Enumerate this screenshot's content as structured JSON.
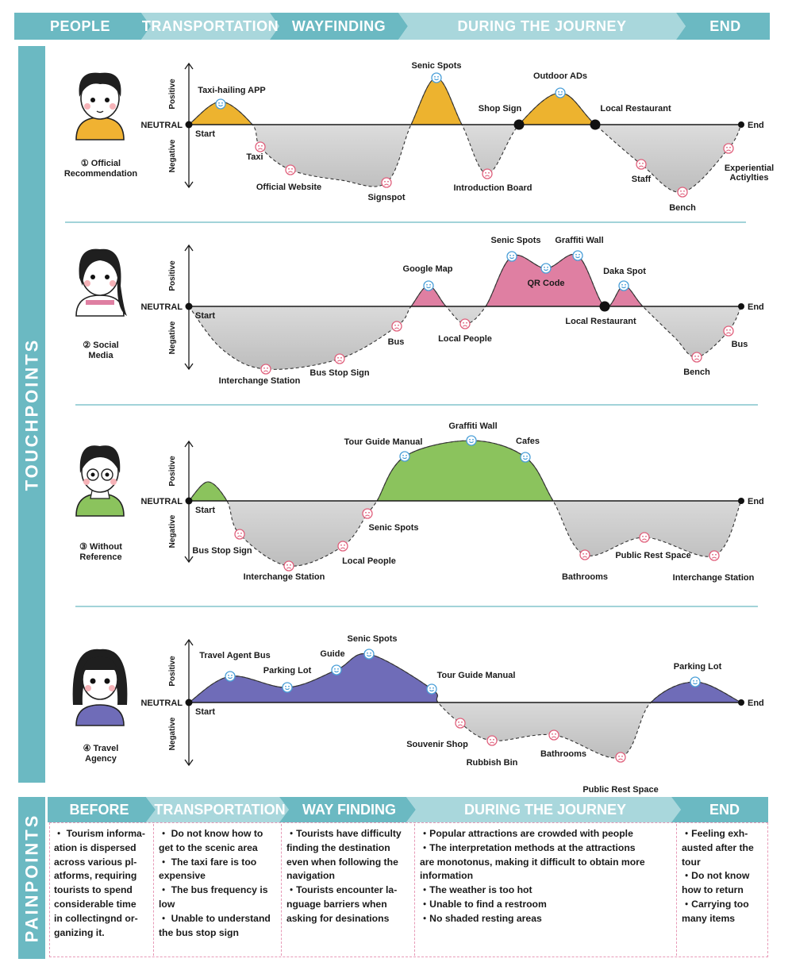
{
  "stages": [
    "PEOPLE",
    "TRANSPORTATION",
    "WAYFINDING",
    "DURING THE JOURNEY",
    "END"
  ],
  "touchpoints_label": "TOUCHPOINTS",
  "painpoints_label": "PAINPOINTS",
  "axis": {
    "positive": "Positive",
    "negative": "Negative",
    "neutral": "NEUTRAL",
    "start": "Start",
    "end": "End"
  },
  "colors": {
    "teal": "#6bb9c2",
    "light_teal": "#a9d7dc",
    "yellow": "#edb32f",
    "pink": "#df7fa2",
    "green": "#8bc35d",
    "purple": "#6f6cb8",
    "gray": "#c9c9c9"
  },
  "journeys": [
    {
      "persona": "① Official Recommendation",
      "persona_lines": [
        "① Official",
        "Recommendation"
      ],
      "color": "#edb32f",
      "touchpoints": [
        {
          "label": "Taxi-hailing APP",
          "mood": "positive"
        },
        {
          "label": "Taxi",
          "mood": "negative"
        },
        {
          "label": "Official Website",
          "mood": "negative"
        },
        {
          "label": "Signspot",
          "mood": "negative"
        },
        {
          "label": "Senic Spots",
          "mood": "positive"
        },
        {
          "label": "Introduction Board",
          "mood": "negative"
        },
        {
          "label": "Shop Sign",
          "mood": "neutral"
        },
        {
          "label": "Outdoor ADs",
          "mood": "positive"
        },
        {
          "label": "Local Restaurant",
          "mood": "neutral"
        },
        {
          "label": "Staff",
          "mood": "negative"
        },
        {
          "label": "Bench",
          "mood": "negative"
        },
        {
          "label": "Experiential Actiylties",
          "mood": "negative"
        }
      ]
    },
    {
      "persona": "② Social Media",
      "persona_lines": [
        "② Social",
        "Media"
      ],
      "color": "#df7fa2",
      "touchpoints": [
        {
          "label": "Interchange Station",
          "mood": "negative"
        },
        {
          "label": "Bus Stop Sign",
          "mood": "negative"
        },
        {
          "label": "Bus",
          "mood": "negative"
        },
        {
          "label": "Google Map",
          "mood": "positive"
        },
        {
          "label": "Local People",
          "mood": "negative"
        },
        {
          "label": "Senic Spots",
          "mood": "positive"
        },
        {
          "label": "QR Code",
          "mood": "positive"
        },
        {
          "label": "Graffiti Wall",
          "mood": "positive"
        },
        {
          "label": "Local Restaurant",
          "mood": "neutral"
        },
        {
          "label": "Daka Spot",
          "mood": "positive"
        },
        {
          "label": "Bench",
          "mood": "negative"
        },
        {
          "label": "Bus",
          "mood": "negative"
        }
      ]
    },
    {
      "persona": "③ Without Reference",
      "persona_lines": [
        "③ Without",
        "Reference"
      ],
      "color": "#8bc35d",
      "touchpoints": [
        {
          "label": "Bus Stop Sign",
          "mood": "negative"
        },
        {
          "label": "Interchange Station",
          "mood": "negative"
        },
        {
          "label": "Local People",
          "mood": "negative"
        },
        {
          "label": "Senic Spots",
          "mood": "negative"
        },
        {
          "label": "Tour Guide Manual",
          "mood": "positive"
        },
        {
          "label": "Graffiti Wall",
          "mood": "positive"
        },
        {
          "label": "Cafes",
          "mood": "positive"
        },
        {
          "label": "Bathrooms",
          "mood": "negative"
        },
        {
          "label": "Public Rest Space",
          "mood": "negative"
        },
        {
          "label": "Interchange Station",
          "mood": "negative"
        }
      ]
    },
    {
      "persona": "④ Travel Agency",
      "persona_lines": [
        "④ Travel",
        "Agency"
      ],
      "color": "#6f6cb8",
      "touchpoints": [
        {
          "label": "Travel Agent Bus",
          "mood": "positive"
        },
        {
          "label": "Parking Lot",
          "mood": "positive"
        },
        {
          "label": "Guide",
          "mood": "positive"
        },
        {
          "label": "Senic Spots",
          "mood": "positive"
        },
        {
          "label": "Tour Guide Manual",
          "mood": "positive"
        },
        {
          "label": "Souvenir Shop",
          "mood": "negative"
        },
        {
          "label": "Rubbish Bin",
          "mood": "negative"
        },
        {
          "label": "Bathrooms",
          "mood": "negative"
        },
        {
          "label": "Public Rest Space",
          "mood": "negative"
        },
        {
          "label": "Parking Lot",
          "mood": "positive"
        }
      ]
    }
  ],
  "painpoint_headers": [
    "BEFORE",
    "TRANSPORTATION",
    "WAY FINDING",
    "DURING THE JOURNEY",
    "END"
  ],
  "painpoints": [
    {
      "lines": [
        "・ Tourism informa-",
        "ation  is dispersed",
        "across various pl-",
        "atforms, requiring",
        "tourists to spend",
        "considerable time",
        "in collectingnd or-",
        "ganizing it."
      ]
    },
    {
      "lines": [
        "・ Do not know how to",
        "get to the scenic area",
        "・ The taxi fare is too",
        "expensive",
        "・ The bus frequency is",
        "low",
        "・ Unable to understand",
        "the bus stop sign"
      ]
    },
    {
      "lines": [
        "・Tourists have difficulty",
        "finding the destination",
        "even when following the",
        "navigation",
        "・Tourists encounter la-",
        "nguage  barriers when",
        "asking for desinations"
      ]
    },
    {
      "lines": [
        "・Popular attractions are crowded with people",
        "・The interpretation methods at the attractions",
        "are monotonus, making it difficult to obtain more",
        "information",
        "・The weather is too hot",
        "・Unable to find a restroom",
        "・No shaded resting areas"
      ]
    },
    {
      "lines": [
        "・Feeling exh-",
        "austed after the",
        "tour",
        "・Do not know",
        "how to return",
        "・Carrying too",
        "many items"
      ]
    }
  ]
}
